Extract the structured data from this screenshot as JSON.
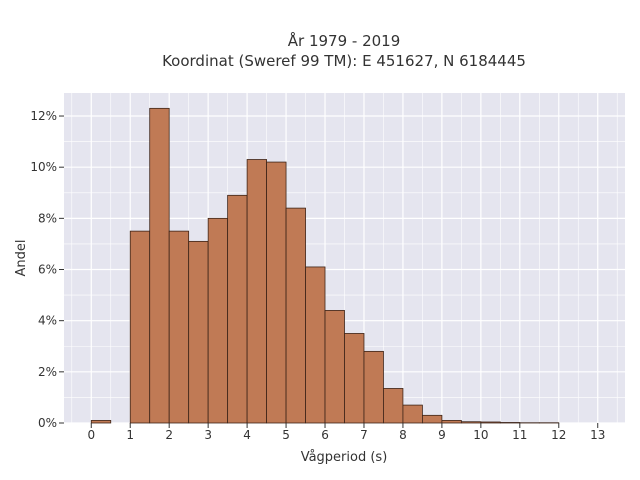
{
  "chart_data": {
    "type": "bar",
    "title_line1": "År 1979 - 2019",
    "title_line2": "Koordinat (Sweref 99 TM): E 451627, N 6184445",
    "xlabel": "Vågperiod (s)",
    "ylabel": "Andel",
    "xlim": [
      -0.7,
      13.7
    ],
    "ylim": [
      0,
      12.9
    ],
    "grid": true,
    "x_ticks": [
      0,
      1,
      2,
      3,
      4,
      5,
      6,
      7,
      8,
      9,
      10,
      11,
      12,
      13
    ],
    "x_tick_labels": [
      "0",
      "1",
      "2",
      "3",
      "4",
      "5",
      "6",
      "7",
      "8",
      "9",
      "10",
      "11",
      "12",
      "13"
    ],
    "y_ticks": [
      0,
      2,
      4,
      6,
      8,
      10,
      12
    ],
    "y_tick_labels": [
      "0%",
      "2%",
      "4%",
      "6%",
      "8%",
      "10%",
      "12%"
    ],
    "bin_width": 0.5,
    "bins": [
      {
        "start": 0.0,
        "value": 0.1
      },
      {
        "start": 1.0,
        "value": 7.5
      },
      {
        "start": 1.5,
        "value": 12.3
      },
      {
        "start": 2.0,
        "value": 7.5
      },
      {
        "start": 2.5,
        "value": 7.1
      },
      {
        "start": 3.0,
        "value": 8.0
      },
      {
        "start": 3.5,
        "value": 8.9
      },
      {
        "start": 4.0,
        "value": 10.3
      },
      {
        "start": 4.5,
        "value": 10.2
      },
      {
        "start": 5.0,
        "value": 8.4
      },
      {
        "start": 5.5,
        "value": 6.1
      },
      {
        "start": 6.0,
        "value": 4.4
      },
      {
        "start": 6.5,
        "value": 3.5
      },
      {
        "start": 7.0,
        "value": 2.8
      },
      {
        "start": 7.5,
        "value": 1.35
      },
      {
        "start": 8.0,
        "value": 0.7
      },
      {
        "start": 8.5,
        "value": 0.3
      },
      {
        "start": 9.0,
        "value": 0.1
      },
      {
        "start": 9.5,
        "value": 0.05
      },
      {
        "start": 10.0,
        "value": 0.04
      },
      {
        "start": 10.5,
        "value": 0.02
      },
      {
        "start": 11.0,
        "value": 0.01
      },
      {
        "start": 11.5,
        "value": 0.01
      }
    ],
    "colors": {
      "bar_fill": "#c07a55",
      "bar_edge": "#3d2418",
      "plot_bg": "#e5e5ef",
      "grid": "#ffffff"
    }
  }
}
